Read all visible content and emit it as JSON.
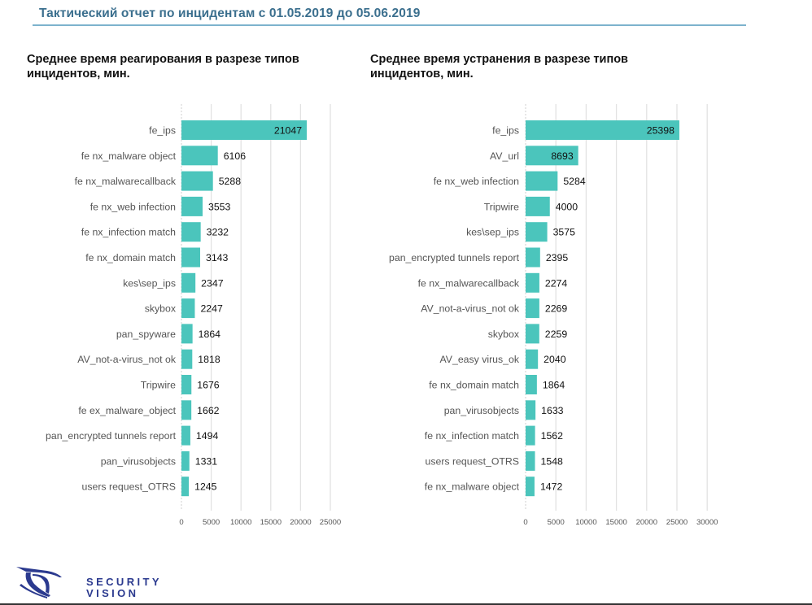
{
  "header": {
    "title": "Тактический отчет по инцидентам с 01.05.2019 до 05.06.2019"
  },
  "colors": {
    "bar": "#4bc5bc",
    "title": "#3b6f8e",
    "title_rule": "#7db3cd",
    "grid": "#e2e2e2",
    "logo": "#2b3a8f"
  },
  "logo": {
    "icon": "eye-logo-icon",
    "line1": "SECURITY",
    "line2": "VISION"
  },
  "chart_data": [
    {
      "type": "bar",
      "orientation": "horizontal",
      "title": "Среднее время реагирования в разрезе типов инцидентов, мин.",
      "xlabel": "",
      "ylabel": "",
      "xlim": [
        0,
        25000
      ],
      "xticks": [
        0,
        5000,
        10000,
        15000,
        20000,
        25000
      ],
      "grid": true,
      "categories": [
        "fe_ips",
        "fe nx_malware object",
        "fe nx_malwarecallback",
        "fe nx_web infection",
        "fe nx_infection match",
        "fe nx_domain match",
        "kes\\sep_ips",
        "skybox",
        "pan_spyware",
        "AV_not-a-virus_not ok",
        "Tripwire",
        "fe ex_malware_object",
        "pan_encrypted tunnels report",
        "pan_virusobjects",
        "users request_OTRS"
      ],
      "values": [
        21047,
        6106,
        5288,
        3553,
        3232,
        3143,
        2347,
        2247,
        1864,
        1818,
        1676,
        1662,
        1494,
        1331,
        1245
      ]
    },
    {
      "type": "bar",
      "orientation": "horizontal",
      "title": "Среднее время устранения в разрезе типов инцидентов, мин.",
      "xlabel": "",
      "ylabel": "",
      "xlim": [
        0,
        30000
      ],
      "xticks": [
        0,
        5000,
        10000,
        15000,
        20000,
        25000,
        30000
      ],
      "grid": true,
      "categories": [
        "fe_ips",
        "AV_url",
        "fe nx_web infection",
        "Tripwire",
        "kes\\sep_ips",
        "pan_encrypted tunnels report",
        "fe nx_malwarecallback",
        "AV_not-a-virus_not ok",
        "skybox",
        "AV_easy virus_ok",
        "fe nx_domain match",
        "pan_virusobjects",
        "fe nx_infection match",
        "users request_OTRS",
        "fe nx_malware object"
      ],
      "values": [
        25398,
        8693,
        5284,
        4000,
        3575,
        2395,
        2274,
        2269,
        2259,
        2040,
        1864,
        1633,
        1562,
        1548,
        1472
      ]
    }
  ]
}
